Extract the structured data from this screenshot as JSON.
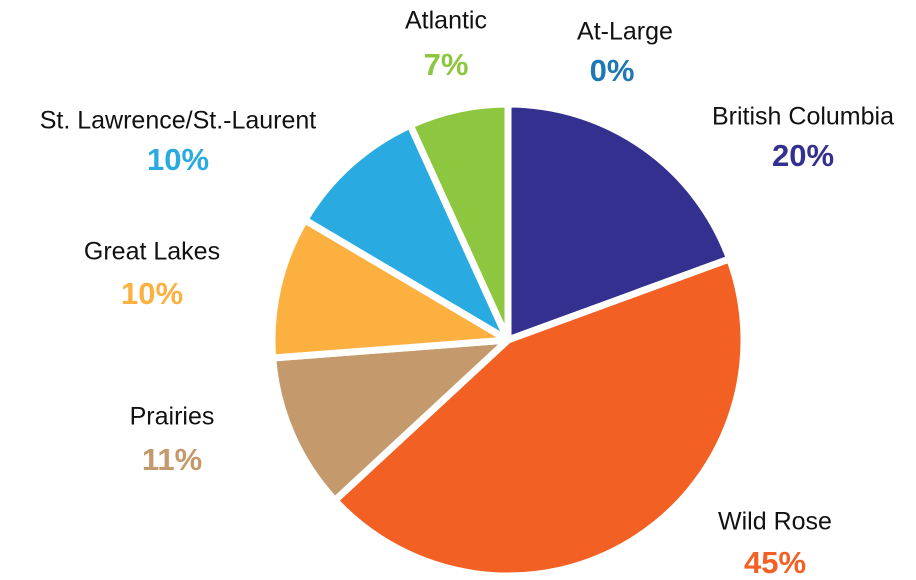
{
  "chart_data": {
    "type": "pie",
    "categories": [
      "At-Large",
      "British Columbia",
      "Wild Rose",
      "Prairies",
      "Great Lakes",
      "St. Lawrence/St.-Laurent",
      "Atlantic"
    ],
    "values": [
      0,
      20,
      45,
      11,
      10,
      10,
      7
    ],
    "value_labels": [
      "0%",
      "20%",
      "45%",
      "11%",
      "10%",
      "10%",
      "7%"
    ],
    "colors": [
      "#1f77b4",
      "#343090",
      "#f26024",
      "#c49a6c",
      "#fbb040",
      "#29abe2",
      "#8dc63f"
    ]
  }
}
